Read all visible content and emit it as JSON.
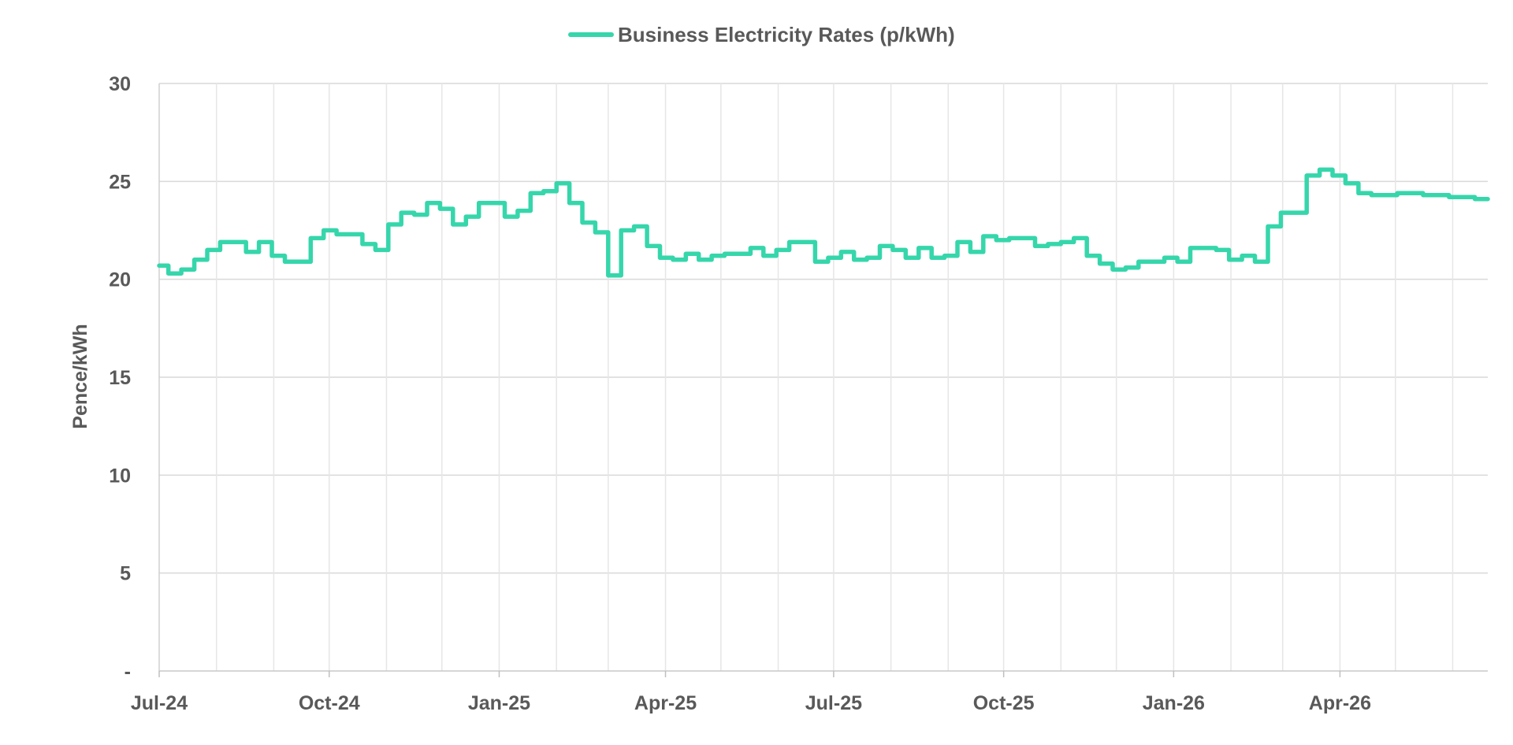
{
  "chart_data": {
    "type": "line",
    "title": "",
    "xlabel": "",
    "ylabel": "Pence/kWh",
    "ylim": [
      0,
      30
    ],
    "yticks": [
      "-",
      "5",
      "10",
      "15",
      "20",
      "25",
      "30"
    ],
    "xticks": [
      "Jul-24",
      "Oct-24",
      "Jan-25",
      "Apr-25",
      "Jul-25",
      "Oct-25",
      "Jan-26",
      "Apr-26"
    ],
    "x_range": [
      "2024-07-01",
      "2026-06-20"
    ],
    "grid": true,
    "legend_position": "top-center",
    "series": [
      {
        "name": "Business Electricity Rates (p/kWh)",
        "color": "#36d6ab",
        "points": [
          [
            "2024-07-01",
            20.7
          ],
          [
            "2024-07-06",
            20.3
          ],
          [
            "2024-07-13",
            20.5
          ],
          [
            "2024-07-20",
            21.0
          ],
          [
            "2024-07-27",
            21.5
          ],
          [
            "2024-08-03",
            21.9
          ],
          [
            "2024-08-17",
            21.4
          ],
          [
            "2024-08-24",
            21.9
          ],
          [
            "2024-08-31",
            21.2
          ],
          [
            "2024-09-07",
            20.9
          ],
          [
            "2024-09-21",
            22.1
          ],
          [
            "2024-09-28",
            22.5
          ],
          [
            "2024-10-05",
            22.3
          ],
          [
            "2024-10-19",
            21.8
          ],
          [
            "2024-10-26",
            21.5
          ],
          [
            "2024-11-02",
            22.8
          ],
          [
            "2024-11-09",
            23.4
          ],
          [
            "2024-11-16",
            23.3
          ],
          [
            "2024-11-23",
            23.9
          ],
          [
            "2024-11-30",
            23.6
          ],
          [
            "2024-12-07",
            22.8
          ],
          [
            "2024-12-14",
            23.2
          ],
          [
            "2024-12-21",
            23.9
          ],
          [
            "2025-01-04",
            23.2
          ],
          [
            "2025-01-11",
            23.5
          ],
          [
            "2025-01-18",
            24.4
          ],
          [
            "2025-01-25",
            24.5
          ],
          [
            "2025-02-01",
            24.9
          ],
          [
            "2025-02-08",
            23.9
          ],
          [
            "2025-02-15",
            22.9
          ],
          [
            "2025-02-22",
            22.4
          ],
          [
            "2025-03-01",
            20.2
          ],
          [
            "2025-03-08",
            22.5
          ],
          [
            "2025-03-15",
            22.7
          ],
          [
            "2025-03-22",
            21.7
          ],
          [
            "2025-03-29",
            21.1
          ],
          [
            "2025-04-05",
            21.0
          ],
          [
            "2025-04-12",
            21.3
          ],
          [
            "2025-04-19",
            21.0
          ],
          [
            "2025-04-26",
            21.2
          ],
          [
            "2025-05-03",
            21.3
          ],
          [
            "2025-05-17",
            21.6
          ],
          [
            "2025-05-24",
            21.2
          ],
          [
            "2025-05-31",
            21.5
          ],
          [
            "2025-06-07",
            21.9
          ],
          [
            "2025-06-21",
            20.9
          ],
          [
            "2025-06-28",
            21.1
          ],
          [
            "2025-07-05",
            21.4
          ],
          [
            "2025-07-12",
            21.0
          ],
          [
            "2025-07-19",
            21.1
          ],
          [
            "2025-07-26",
            21.7
          ],
          [
            "2025-08-02",
            21.5
          ],
          [
            "2025-08-09",
            21.1
          ],
          [
            "2025-08-16",
            21.6
          ],
          [
            "2025-08-23",
            21.1
          ],
          [
            "2025-08-30",
            21.2
          ],
          [
            "2025-09-06",
            21.9
          ],
          [
            "2025-09-13",
            21.4
          ],
          [
            "2025-09-20",
            22.2
          ],
          [
            "2025-09-27",
            22.0
          ],
          [
            "2025-10-04",
            22.1
          ],
          [
            "2025-10-18",
            21.7
          ],
          [
            "2025-10-25",
            21.8
          ],
          [
            "2025-11-01",
            21.9
          ],
          [
            "2025-11-08",
            22.1
          ],
          [
            "2025-11-15",
            21.2
          ],
          [
            "2025-11-22",
            20.8
          ],
          [
            "2025-11-29",
            20.5
          ],
          [
            "2025-12-06",
            20.6
          ],
          [
            "2025-12-13",
            20.9
          ],
          [
            "2025-12-27",
            21.1
          ],
          [
            "2026-01-03",
            20.9
          ],
          [
            "2026-01-10",
            21.6
          ],
          [
            "2026-01-24",
            21.5
          ],
          [
            "2026-01-31",
            21.0
          ],
          [
            "2026-02-07",
            21.2
          ],
          [
            "2026-02-14",
            20.9
          ],
          [
            "2026-02-21",
            22.7
          ],
          [
            "2026-02-28",
            23.4
          ],
          [
            "2026-03-14",
            25.3
          ],
          [
            "2026-03-21",
            25.6
          ],
          [
            "2026-03-28",
            25.3
          ],
          [
            "2026-04-04",
            24.9
          ],
          [
            "2026-04-11",
            24.4
          ],
          [
            "2026-04-18",
            24.3
          ],
          [
            "2026-05-02",
            24.4
          ],
          [
            "2026-05-16",
            24.3
          ],
          [
            "2026-05-30",
            24.2
          ],
          [
            "2026-06-13",
            24.1
          ],
          [
            "2026-06-20",
            24.1
          ]
        ]
      }
    ]
  }
}
